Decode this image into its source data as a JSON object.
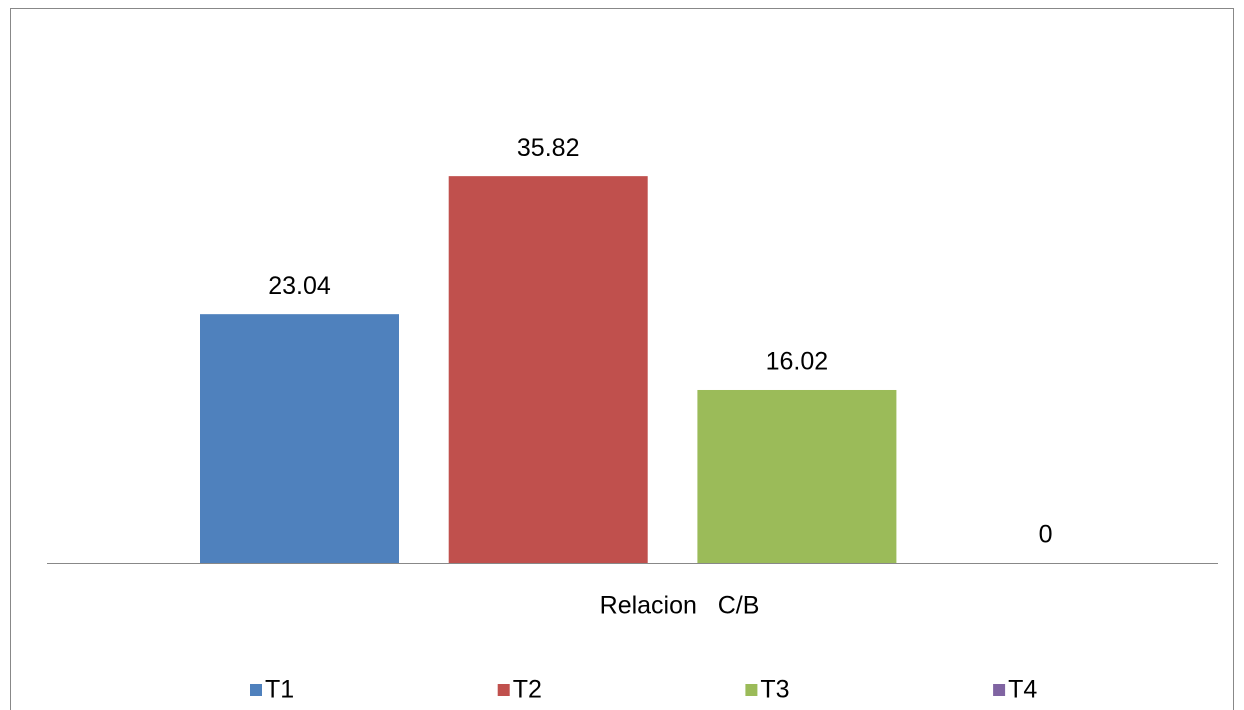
{
  "chart_data": {
    "type": "bar",
    "categories": [
      "Relacion   C/B"
    ],
    "series": [
      {
        "name": "T1",
        "color": "#4f81bd",
        "values": [
          23.04
        ]
      },
      {
        "name": "T2",
        "color": "#c0504d",
        "values": [
          35.82
        ]
      },
      {
        "name": "T3",
        "color": "#9bbb59",
        "values": [
          16.02
        ]
      },
      {
        "name": "T4",
        "color": "#8064a2",
        "values": [
          0
        ]
      }
    ],
    "ylim": [
      0,
      40
    ]
  }
}
